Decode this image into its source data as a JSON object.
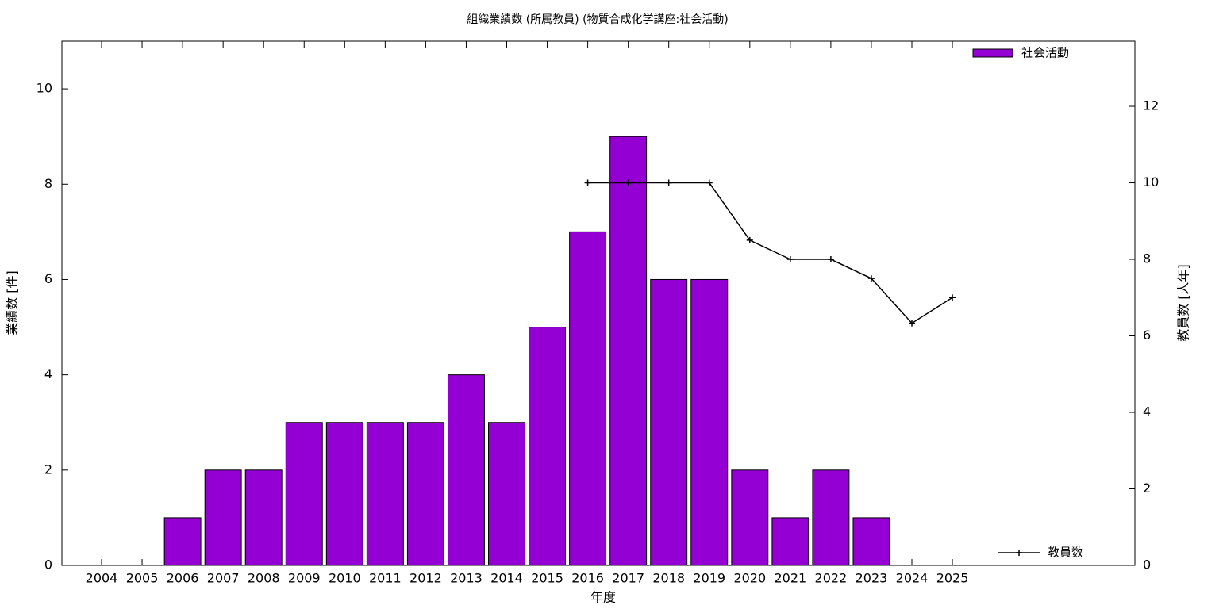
{
  "chart_data": {
    "type": "bar",
    "title": "組織業績数 (所属教員) (物質合成化学講座:社会活動)",
    "x_label": "年度",
    "y_label": "業績数 [件]",
    "y2_label": "教員数 [人年]",
    "categories": [
      "2004",
      "2005",
      "2006",
      "2007",
      "2008",
      "2009",
      "2010",
      "2011",
      "2012",
      "2013",
      "2014",
      "2015",
      "2016",
      "2017",
      "2018",
      "2019",
      "2020",
      "2021",
      "2022",
      "2023",
      "2024",
      "2025"
    ],
    "series": [
      {
        "name": "社会活動",
        "type": "bar",
        "color": "#9400d3",
        "values": [
          0,
          0,
          1,
          2,
          2,
          3,
          3,
          3,
          3,
          4,
          3,
          5,
          7,
          9,
          6,
          6,
          2,
          1,
          2,
          1,
          0,
          0
        ]
      },
      {
        "name": "教員数",
        "type": "line",
        "color": "#000000",
        "axis": "y2",
        "values": [
          null,
          null,
          null,
          null,
          null,
          null,
          null,
          null,
          null,
          null,
          null,
          null,
          10,
          10,
          10,
          10,
          8.5,
          8,
          8,
          7.5,
          6.33,
          7
        ]
      }
    ],
    "ylim": [
      0,
      11
    ],
    "yticks": [
      0,
      2,
      4,
      6,
      8,
      10
    ],
    "y2lim": [
      0,
      13.7
    ],
    "y2ticks": [
      0,
      2,
      4,
      6,
      8,
      10,
      12
    ]
  }
}
